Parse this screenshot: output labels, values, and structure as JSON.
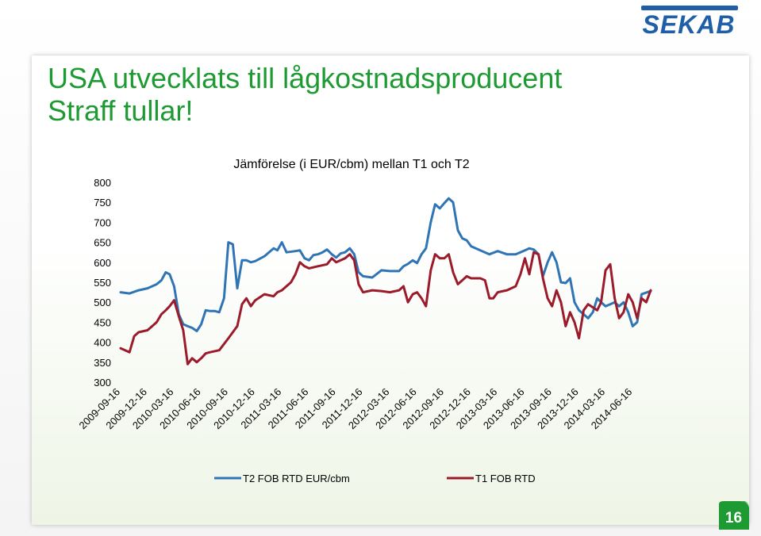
{
  "slide": {
    "title_line1": "USA utvecklats till lågkostnadsproducent",
    "title_line2": "Straff tullar!",
    "logo_text": "SEKAB",
    "page_number": "16"
  },
  "colors": {
    "title": "#1e9a33",
    "t2": "#2f74b5",
    "t1": "#9b1b2b",
    "logo": "#1f5fa7",
    "badge": "#1e9a33"
  },
  "chart_data": {
    "type": "line",
    "title": "Jämförelse (i EUR/cbm) mellan T1 och T2",
    "xlabel": "",
    "ylabel": "",
    "ylim": [
      300,
      800
    ],
    "yticks": [
      300,
      350,
      400,
      450,
      500,
      550,
      600,
      650,
      700,
      750,
      800
    ],
    "grid": false,
    "legend_position": "bottom",
    "x_start": "2009-09-16",
    "x_end": "2014-08-16",
    "x_ticks": [
      "2009-09-16",
      "2009-12-16",
      "2010-03-16",
      "2010-06-16",
      "2010-09-16",
      "2010-12-16",
      "2011-03-16",
      "2011-06-16",
      "2011-09-16",
      "2011-12-16",
      "2012-03-16",
      "2012-06-16",
      "2012-09-16",
      "2012-12-16",
      "2013-03-16",
      "2013-06-16",
      "2013-09-16",
      "2013-12-16",
      "2014-03-16",
      "2014-06-16"
    ],
    "series": [
      {
        "name": "T2 FOB RTD EUR/cbm",
        "color": "#2f74b5",
        "points": [
          [
            "2009-09-16",
            525
          ],
          [
            "2009-10-16",
            522
          ],
          [
            "2009-11-16",
            530
          ],
          [
            "2009-12-16",
            535
          ],
          [
            "2010-01-16",
            545
          ],
          [
            "2010-02-01",
            555
          ],
          [
            "2010-02-16",
            575
          ],
          [
            "2010-03-01",
            570
          ],
          [
            "2010-03-16",
            540
          ],
          [
            "2010-04-01",
            470
          ],
          [
            "2010-04-16",
            445
          ],
          [
            "2010-05-01",
            440
          ],
          [
            "2010-05-16",
            436
          ],
          [
            "2010-06-01",
            428
          ],
          [
            "2010-06-16",
            445
          ],
          [
            "2010-07-01",
            480
          ],
          [
            "2010-07-16",
            478
          ],
          [
            "2010-08-01",
            478
          ],
          [
            "2010-08-16",
            475
          ],
          [
            "2010-09-01",
            510
          ],
          [
            "2010-09-16",
            650
          ],
          [
            "2010-10-01",
            645
          ],
          [
            "2010-10-16",
            535
          ],
          [
            "2010-11-01",
            605
          ],
          [
            "2010-11-16",
            605
          ],
          [
            "2010-12-01",
            600
          ],
          [
            "2010-12-16",
            603
          ],
          [
            "2011-01-16",
            615
          ],
          [
            "2011-02-16",
            635
          ],
          [
            "2011-03-01",
            630
          ],
          [
            "2011-03-16",
            650
          ],
          [
            "2011-04-01",
            625
          ],
          [
            "2011-05-01",
            628
          ],
          [
            "2011-05-16",
            630
          ],
          [
            "2011-06-01",
            610
          ],
          [
            "2011-06-16",
            605
          ],
          [
            "2011-07-01",
            618
          ],
          [
            "2011-07-16",
            620
          ],
          [
            "2011-08-01",
            625
          ],
          [
            "2011-08-16",
            632
          ],
          [
            "2011-09-01",
            620
          ],
          [
            "2011-09-16",
            612
          ],
          [
            "2011-10-01",
            622
          ],
          [
            "2011-10-16",
            625
          ],
          [
            "2011-11-01",
            635
          ],
          [
            "2011-11-16",
            620
          ],
          [
            "2011-12-01",
            575
          ],
          [
            "2011-12-16",
            565
          ],
          [
            "2012-01-16",
            562
          ],
          [
            "2012-02-16",
            580
          ],
          [
            "2012-03-16",
            578
          ],
          [
            "2012-04-16",
            578
          ],
          [
            "2012-05-01",
            590
          ],
          [
            "2012-05-16",
            596
          ],
          [
            "2012-06-01",
            605
          ],
          [
            "2012-06-16",
            598
          ],
          [
            "2012-07-01",
            620
          ],
          [
            "2012-07-16",
            635
          ],
          [
            "2012-08-01",
            700
          ],
          [
            "2012-08-16",
            745
          ],
          [
            "2012-09-01",
            735
          ],
          [
            "2012-09-16",
            748
          ],
          [
            "2012-10-01",
            760
          ],
          [
            "2012-10-16",
            750
          ],
          [
            "2012-11-01",
            680
          ],
          [
            "2012-11-16",
            660
          ],
          [
            "2012-12-01",
            655
          ],
          [
            "2012-12-16",
            640
          ],
          [
            "2013-01-16",
            630
          ],
          [
            "2013-02-16",
            620
          ],
          [
            "2013-03-16",
            628
          ],
          [
            "2013-04-16",
            620
          ],
          [
            "2013-05-16",
            620
          ],
          [
            "2013-06-16",
            630
          ],
          [
            "2013-07-01",
            635
          ],
          [
            "2013-07-16",
            632
          ],
          [
            "2013-08-01",
            620
          ],
          [
            "2013-08-16",
            565
          ],
          [
            "2013-09-01",
            600
          ],
          [
            "2013-09-16",
            625
          ],
          [
            "2013-10-01",
            600
          ],
          [
            "2013-10-16",
            550
          ],
          [
            "2013-11-01",
            548
          ],
          [
            "2013-11-16",
            560
          ],
          [
            "2013-12-01",
            500
          ],
          [
            "2013-12-16",
            480
          ],
          [
            "2014-01-01",
            470
          ],
          [
            "2014-01-16",
            460
          ],
          [
            "2014-02-01",
            475
          ],
          [
            "2014-02-16",
            510
          ],
          [
            "2014-03-01",
            500
          ],
          [
            "2014-03-16",
            490
          ],
          [
            "2014-04-01",
            495
          ],
          [
            "2014-04-16",
            500
          ],
          [
            "2014-05-01",
            490
          ],
          [
            "2014-05-16",
            500
          ],
          [
            "2014-06-01",
            475
          ],
          [
            "2014-06-16",
            440
          ],
          [
            "2014-07-01",
            450
          ],
          [
            "2014-07-16",
            520
          ],
          [
            "2014-08-16",
            528
          ]
        ]
      },
      {
        "name": "T1 FOB RTD",
        "color": "#9b1b2b",
        "points": [
          [
            "2009-09-16",
            385
          ],
          [
            "2009-10-01",
            380
          ],
          [
            "2009-10-16",
            375
          ],
          [
            "2009-11-01",
            415
          ],
          [
            "2009-11-16",
            425
          ],
          [
            "2009-12-16",
            430
          ],
          [
            "2010-01-16",
            450
          ],
          [
            "2010-02-01",
            470
          ],
          [
            "2010-02-16",
            480
          ],
          [
            "2010-03-01",
            490
          ],
          [
            "2010-03-16",
            505
          ],
          [
            "2010-04-01",
            465
          ],
          [
            "2010-04-16",
            430
          ],
          [
            "2010-05-01",
            345
          ],
          [
            "2010-05-16",
            360
          ],
          [
            "2010-06-01",
            350
          ],
          [
            "2010-06-16",
            360
          ],
          [
            "2010-07-01",
            372
          ],
          [
            "2010-07-16",
            375
          ],
          [
            "2010-08-16",
            380
          ],
          [
            "2010-09-16",
            410
          ],
          [
            "2010-10-01",
            425
          ],
          [
            "2010-10-16",
            440
          ],
          [
            "2010-11-01",
            495
          ],
          [
            "2010-11-16",
            510
          ],
          [
            "2010-12-01",
            490
          ],
          [
            "2010-12-16",
            505
          ],
          [
            "2011-01-16",
            520
          ],
          [
            "2011-02-16",
            515
          ],
          [
            "2011-03-01",
            525
          ],
          [
            "2011-03-16",
            530
          ],
          [
            "2011-04-16",
            550
          ],
          [
            "2011-05-01",
            570
          ],
          [
            "2011-05-16",
            600
          ],
          [
            "2011-06-01",
            590
          ],
          [
            "2011-06-16",
            585
          ],
          [
            "2011-07-16",
            590
          ],
          [
            "2011-08-16",
            595
          ],
          [
            "2011-09-01",
            610
          ],
          [
            "2011-09-16",
            600
          ],
          [
            "2011-10-16",
            610
          ],
          [
            "2011-11-01",
            620
          ],
          [
            "2011-11-16",
            605
          ],
          [
            "2011-12-01",
            545
          ],
          [
            "2011-12-16",
            525
          ],
          [
            "2012-01-16",
            530
          ],
          [
            "2012-02-16",
            528
          ],
          [
            "2012-03-16",
            525
          ],
          [
            "2012-04-16",
            530
          ],
          [
            "2012-05-01",
            540
          ],
          [
            "2012-05-16",
            500
          ],
          [
            "2012-06-01",
            520
          ],
          [
            "2012-06-16",
            525
          ],
          [
            "2012-07-01",
            510
          ],
          [
            "2012-07-16",
            490
          ],
          [
            "2012-08-01",
            580
          ],
          [
            "2012-08-16",
            620
          ],
          [
            "2012-09-01",
            610
          ],
          [
            "2012-09-16",
            610
          ],
          [
            "2012-10-01",
            620
          ],
          [
            "2012-10-16",
            575
          ],
          [
            "2012-11-01",
            545
          ],
          [
            "2012-11-16",
            555
          ],
          [
            "2012-12-01",
            565
          ],
          [
            "2012-12-16",
            560
          ],
          [
            "2013-01-16",
            560
          ],
          [
            "2013-02-01",
            555
          ],
          [
            "2013-02-16",
            510
          ],
          [
            "2013-03-01",
            510
          ],
          [
            "2013-03-16",
            525
          ],
          [
            "2013-04-16",
            530
          ],
          [
            "2013-05-16",
            540
          ],
          [
            "2013-06-01",
            570
          ],
          [
            "2013-06-16",
            610
          ],
          [
            "2013-07-01",
            570
          ],
          [
            "2013-07-16",
            625
          ],
          [
            "2013-08-01",
            620
          ],
          [
            "2013-08-16",
            560
          ],
          [
            "2013-09-01",
            510
          ],
          [
            "2013-09-16",
            490
          ],
          [
            "2013-10-01",
            530
          ],
          [
            "2013-10-16",
            500
          ],
          [
            "2013-11-01",
            440
          ],
          [
            "2013-11-16",
            475
          ],
          [
            "2013-12-01",
            450
          ],
          [
            "2013-12-16",
            410
          ],
          [
            "2014-01-01",
            480
          ],
          [
            "2014-01-16",
            495
          ],
          [
            "2014-02-16",
            480
          ],
          [
            "2014-03-01",
            500
          ],
          [
            "2014-03-16",
            580
          ],
          [
            "2014-04-01",
            595
          ],
          [
            "2014-04-16",
            510
          ],
          [
            "2014-05-01",
            460
          ],
          [
            "2014-05-16",
            475
          ],
          [
            "2014-06-01",
            520
          ],
          [
            "2014-06-16",
            500
          ],
          [
            "2014-07-01",
            460
          ],
          [
            "2014-07-16",
            510
          ],
          [
            "2014-08-01",
            500
          ],
          [
            "2014-08-16",
            530
          ]
        ]
      }
    ]
  }
}
